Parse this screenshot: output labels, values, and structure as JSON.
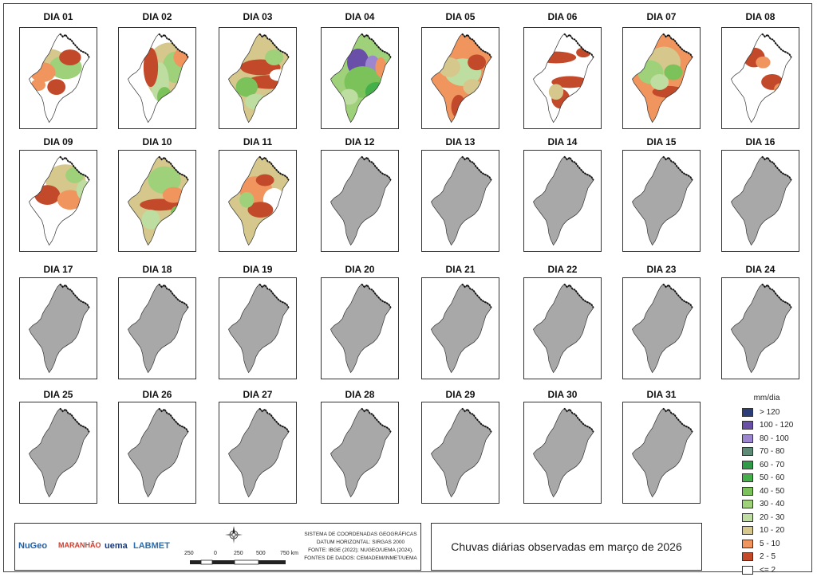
{
  "legend": {
    "title": "mm/dia",
    "classes": [
      {
        "label": "> 120",
        "color": "#2c3e7a"
      },
      {
        "label": "100 - 120",
        "color": "#6a4fa8"
      },
      {
        "label": "80 - 100",
        "color": "#9b86cf"
      },
      {
        "label": "70 - 80",
        "color": "#5e8a78"
      },
      {
        "label": "60 - 70",
        "color": "#2f9a48"
      },
      {
        "label": "50 - 60",
        "color": "#45b04a"
      },
      {
        "label": "40 - 50",
        "color": "#7cc25a"
      },
      {
        "label": "30 - 40",
        "color": "#9fd07a"
      },
      {
        "label": "20 - 30",
        "color": "#bedda0"
      },
      {
        "label": "10 - 20",
        "color": "#d6c88c"
      },
      {
        "label": "5 - 10",
        "color": "#f0955d"
      },
      {
        "label": "2 - 5",
        "color": "#c24a2a"
      },
      {
        "label": "<= 2",
        "color": "#ffffff"
      }
    ]
  },
  "days": [
    {
      "label": "DIA 01",
      "status": "observed",
      "base": "#ffffff",
      "blobs": [
        [
          30,
          35,
          22,
          14,
          "#d6c88c"
        ],
        [
          50,
          40,
          18,
          12,
          "#9fd07a"
        ],
        [
          25,
          45,
          14,
          10,
          "#f0955d"
        ],
        [
          55,
          30,
          12,
          8,
          "#c24a2a"
        ],
        [
          40,
          60,
          10,
          8,
          "#c24a2a"
        ],
        [
          20,
          58,
          8,
          6,
          "#f0955d"
        ]
      ]
    },
    {
      "label": "DIA 02",
      "status": "observed",
      "base": "#ffffff",
      "blobs": [
        [
          55,
          45,
          26,
          30,
          "#d6c88c"
        ],
        [
          62,
          40,
          14,
          16,
          "#9fd07a"
        ],
        [
          45,
          55,
          10,
          20,
          "#bedda0"
        ],
        [
          35,
          40,
          8,
          20,
          "#c24a2a"
        ],
        [
          70,
          30,
          10,
          10,
          "#f0955d"
        ],
        [
          50,
          70,
          8,
          10,
          "#7cc25a"
        ]
      ]
    },
    {
      "label": "DIA 03",
      "status": "observed",
      "base": "#d6c88c",
      "blobs": [
        [
          45,
          40,
          22,
          8,
          "#c24a2a"
        ],
        [
          55,
          55,
          25,
          7,
          "#c24a2a"
        ],
        [
          30,
          60,
          12,
          10,
          "#7cc25a"
        ],
        [
          60,
          30,
          10,
          8,
          "#9fd07a"
        ],
        [
          40,
          75,
          12,
          8,
          "#bedda0"
        ],
        [
          65,
          48,
          10,
          6,
          "#ffffff"
        ]
      ]
    },
    {
      "label": "DIA 04",
      "status": "observed",
      "base": "#9fd07a",
      "blobs": [
        [
          40,
          35,
          12,
          14,
          "#6a4fa8"
        ],
        [
          56,
          38,
          8,
          10,
          "#9b86cf"
        ],
        [
          45,
          55,
          20,
          16,
          "#7cc25a"
        ],
        [
          60,
          65,
          12,
          10,
          "#45b04a"
        ],
        [
          30,
          70,
          10,
          8,
          "#bedda0"
        ],
        [
          65,
          40,
          6,
          10,
          "#f0955d"
        ]
      ]
    },
    {
      "label": "DIA 05",
      "status": "observed",
      "base": "#f0955d",
      "blobs": [
        [
          45,
          45,
          20,
          14,
          "#bedda0"
        ],
        [
          30,
          40,
          12,
          10,
          "#d6c88c"
        ],
        [
          60,
          35,
          10,
          8,
          "#c24a2a"
        ],
        [
          40,
          80,
          8,
          12,
          "#c24a2a"
        ],
        [
          55,
          60,
          10,
          8,
          "#d6c88c"
        ]
      ]
    },
    {
      "label": "DIA 06",
      "status": "observed",
      "base": "#ffffff",
      "blobs": [
        [
          35,
          30,
          22,
          6,
          "#c24a2a"
        ],
        [
          50,
          55,
          20,
          6,
          "#c24a2a"
        ],
        [
          40,
          72,
          10,
          10,
          "#c24a2a"
        ],
        [
          35,
          65,
          8,
          8,
          "#d6c88c"
        ],
        [
          65,
          25,
          8,
          5,
          "#c24a2a"
        ]
      ]
    },
    {
      "label": "DIA 07",
      "status": "observed",
      "base": "#f0955d",
      "blobs": [
        [
          45,
          35,
          18,
          16,
          "#d6c88c"
        ],
        [
          30,
          45,
          14,
          12,
          "#9fd07a"
        ],
        [
          55,
          45,
          10,
          8,
          "#7cc25a"
        ],
        [
          50,
          65,
          18,
          6,
          "#c24a2a"
        ],
        [
          40,
          55,
          10,
          8,
          "#bedda0"
        ]
      ]
    },
    {
      "label": "DIA 08",
      "status": "observed",
      "base": "#ffffff",
      "blobs": [
        [
          35,
          30,
          12,
          10,
          "#c24a2a"
        ],
        [
          55,
          55,
          12,
          8,
          "#c24a2a"
        ],
        [
          65,
          62,
          8,
          6,
          "#f0955d"
        ],
        [
          45,
          35,
          8,
          6,
          "#f0955d"
        ]
      ]
    },
    {
      "label": "DIA 09",
      "status": "observed",
      "base": "#ffffff",
      "blobs": [
        [
          50,
          30,
          22,
          16,
          "#d6c88c"
        ],
        [
          60,
          25,
          10,
          8,
          "#9fd07a"
        ],
        [
          30,
          45,
          14,
          10,
          "#c24a2a"
        ],
        [
          55,
          50,
          14,
          10,
          "#f0955d"
        ],
        [
          70,
          40,
          8,
          10,
          "#bedda0"
        ]
      ]
    },
    {
      "label": "DIA 10",
      "status": "observed",
      "base": "#d6c88c",
      "blobs": [
        [
          50,
          30,
          18,
          14,
          "#9fd07a"
        ],
        [
          45,
          55,
          22,
          6,
          "#c24a2a"
        ],
        [
          60,
          45,
          12,
          8,
          "#f0955d"
        ],
        [
          35,
          70,
          10,
          10,
          "#bedda0"
        ],
        [
          65,
          62,
          8,
          6,
          "#7cc25a"
        ]
      ]
    },
    {
      "label": "DIA 11",
      "status": "observed",
      "base": "#d6c88c",
      "blobs": [
        [
          40,
          40,
          18,
          14,
          "#f0955d"
        ],
        [
          60,
          50,
          12,
          12,
          "#ffffff"
        ],
        [
          45,
          60,
          14,
          8,
          "#c24a2a"
        ],
        [
          30,
          50,
          8,
          8,
          "#9fd07a"
        ],
        [
          50,
          30,
          10,
          6,
          "#c24a2a"
        ]
      ]
    },
    {
      "label": "DIA 12",
      "status": "nodata"
    },
    {
      "label": "DIA 13",
      "status": "nodata"
    },
    {
      "label": "DIA 14",
      "status": "nodata"
    },
    {
      "label": "DIA 15",
      "status": "nodata"
    },
    {
      "label": "DIA 16",
      "status": "nodata"
    },
    {
      "label": "DIA 17",
      "status": "nodata"
    },
    {
      "label": "DIA 18",
      "status": "nodata"
    },
    {
      "label": "DIA 19",
      "status": "nodata"
    },
    {
      "label": "DIA 20",
      "status": "nodata"
    },
    {
      "label": "DIA 21",
      "status": "nodata"
    },
    {
      "label": "DIA 22",
      "status": "nodata"
    },
    {
      "label": "DIA 23",
      "status": "nodata"
    },
    {
      "label": "DIA 24",
      "status": "nodata"
    },
    {
      "label": "DIA 25",
      "status": "nodata"
    },
    {
      "label": "DIA 26",
      "status": "nodata"
    },
    {
      "label": "DIA 27",
      "status": "nodata"
    },
    {
      "label": "DIA 28",
      "status": "nodata"
    },
    {
      "label": "DIA 29",
      "status": "nodata"
    },
    {
      "label": "DIA 30",
      "status": "nodata"
    },
    {
      "label": "DIA 31",
      "status": "nodata"
    }
  ],
  "nodata_color": "#a8a8a8",
  "title": "Chuvas diárias observadas em março de 2026",
  "info": {
    "line1": "SISTEMA DE COORDENADAS GEOGRÁFICAS",
    "line2": "DATUM HORIZONTAL: SIRGAS 2000",
    "line3": "FONTE: IBGE (2022); NUGEO/UEMA (2024).",
    "line4": "FONTES DE DADOS: CEMADEM/INMET/UEMA"
  },
  "scale": {
    "labels": [
      "250",
      "0",
      "250",
      "500",
      "750 km"
    ]
  },
  "logos": [
    {
      "name": "nugeo",
      "text": "NuGeo",
      "color": "#1f5fa8"
    },
    {
      "name": "maranhao",
      "text": "MARANHÃO",
      "color": "#d23a2a"
    },
    {
      "name": "uema",
      "text": "uema",
      "color": "#1a3a7a"
    },
    {
      "name": "labmet",
      "text": "LABMET",
      "color": "#2a6fb0"
    }
  ]
}
